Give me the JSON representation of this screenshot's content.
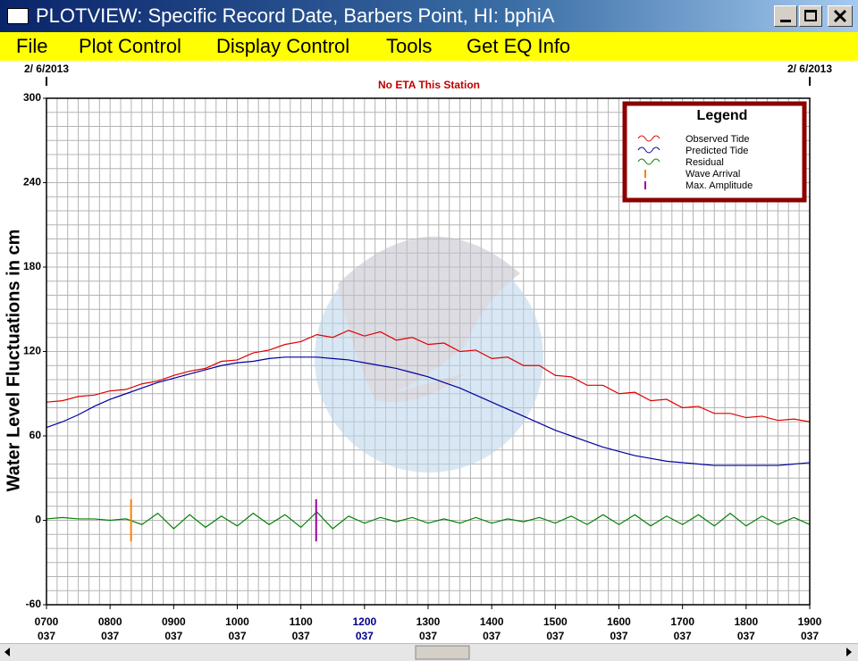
{
  "window": {
    "title": "PLOTVIEW: Specific Record Date, Barbers Point, HI: bphiA",
    "menu": [
      "File",
      "Plot Control",
      "Display Control",
      "Tools",
      "Get EQ Info"
    ]
  },
  "chart_data": {
    "type": "line",
    "annotation": "No ETA This Station",
    "date_labels": [
      "2/ 6/2013",
      "2/ 6/2013"
    ],
    "y_label": "Water Level Fluctuations in cm",
    "legend_title": "Legend",
    "x": [
      7,
      7.25,
      7.5,
      7.75,
      8,
      8.25,
      8.5,
      8.75,
      9,
      9.25,
      9.5,
      9.75,
      10,
      10.25,
      10.5,
      10.75,
      11,
      11.25,
      11.5,
      11.75,
      12,
      12.25,
      12.5,
      12.75,
      13,
      13.25,
      13.5,
      13.75,
      14,
      14.25,
      14.5,
      14.75,
      15,
      15.25,
      15.5,
      15.75,
      16,
      16.25,
      16.5,
      16.75,
      17,
      17.25,
      17.5,
      17.75,
      18,
      18.25,
      18.5,
      18.75,
      19
    ],
    "series": [
      {
        "name": "Observed Tide",
        "color": "#e00000",
        "values": [
          84,
          85,
          88,
          89,
          92,
          93,
          97,
          99,
          103,
          106,
          108,
          113,
          114,
          119,
          121,
          125,
          127,
          132,
          130,
          135,
          131,
          134,
          128,
          130,
          125,
          126,
          120,
          121,
          115,
          116,
          110,
          110,
          103,
          102,
          96,
          96,
          90,
          91,
          85,
          86,
          80,
          81,
          76,
          76,
          73,
          74,
          71,
          72,
          70
        ]
      },
      {
        "name": "Predicted Tide",
        "color": "#0000a0",
        "values": [
          66,
          70,
          75,
          81,
          86,
          90,
          94,
          98,
          101,
          104,
          107,
          110,
          112,
          113,
          115,
          116,
          116,
          116,
          115,
          114,
          112,
          110,
          108,
          105,
          102,
          98,
          94,
          89,
          84,
          79,
          74,
          69,
          64,
          60,
          56,
          52,
          49,
          46,
          44,
          42,
          41,
          40,
          39,
          39,
          39,
          39,
          39,
          40,
          41
        ]
      },
      {
        "name": "Residual",
        "color": "#008000",
        "values": [
          1,
          2,
          1,
          1,
          0,
          1,
          -3,
          5,
          -6,
          4,
          -5,
          3,
          -4,
          5,
          -3,
          4,
          -5,
          6,
          -6,
          3,
          -2,
          2,
          -1,
          2,
          -2,
          1,
          -2,
          2,
          -2,
          1,
          -1,
          2,
          -2,
          3,
          -3,
          4,
          -3,
          4,
          -4,
          3,
          -3,
          4,
          -4,
          5,
          -4,
          3,
          -3,
          2,
          -3
        ]
      }
    ],
    "markers": [
      {
        "name": "Wave Arrival",
        "color": "#ff8000",
        "x": 8.33
      },
      {
        "name": "Max. Amplitude",
        "color": "#a000a0",
        "x": 11.24
      }
    ],
    "marker_range": [
      -15,
      15
    ],
    "xlim": [
      7,
      19
    ],
    "ylim": [
      -60,
      300
    ],
    "xticks": [
      {
        "value": 7,
        "label": "0700"
      },
      {
        "value": 8,
        "label": "0800"
      },
      {
        "value": 9,
        "label": "0900"
      },
      {
        "value": 10,
        "label": "1000"
      },
      {
        "value": 11,
        "label": "1100"
      },
      {
        "value": 12,
        "label": "1200",
        "color": "#00008b"
      },
      {
        "value": 13,
        "label": "1300"
      },
      {
        "value": 14,
        "label": "1400"
      },
      {
        "value": 15,
        "label": "1500"
      },
      {
        "value": 16,
        "label": "1600"
      },
      {
        "value": 17,
        "label": "1700"
      },
      {
        "value": 18,
        "label": "1800"
      },
      {
        "value": 19,
        "label": "1900"
      }
    ],
    "xtick_sublabels": [
      "037",
      "037",
      "037",
      "037",
      "037",
      "037",
      "037",
      "037",
      "037",
      "037",
      "037",
      "037",
      "037"
    ],
    "yticks": [
      -60,
      0,
      60,
      120,
      180,
      240,
      300
    ],
    "x_minor_per_unit": 6,
    "y_minor_step": 10,
    "grid": true
  }
}
